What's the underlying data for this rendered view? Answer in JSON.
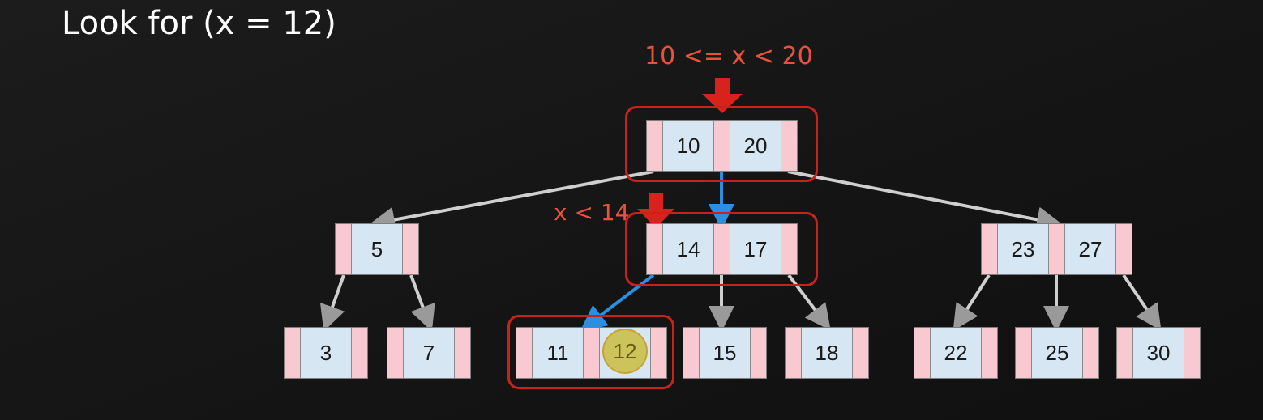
{
  "title": "Look for (x = 12)",
  "annotations": {
    "root_range": "10 <= x < 20",
    "mid_range": "x < 14"
  },
  "colors": {
    "highlight": "#c8221d",
    "annotation": "#e8513a",
    "search_path": "#2a8fe0",
    "found": "#ccc35a"
  },
  "tree": {
    "root": [
      "10",
      "20"
    ],
    "level1": [
      [
        "5"
      ],
      [
        "14",
        "17"
      ],
      [
        "23",
        "27"
      ]
    ],
    "level2": [
      [
        "3"
      ],
      [
        "7"
      ],
      [
        "11",
        "12"
      ],
      [
        "15"
      ],
      [
        "18"
      ],
      [
        "22"
      ],
      [
        "25"
      ],
      [
        "30"
      ]
    ]
  }
}
